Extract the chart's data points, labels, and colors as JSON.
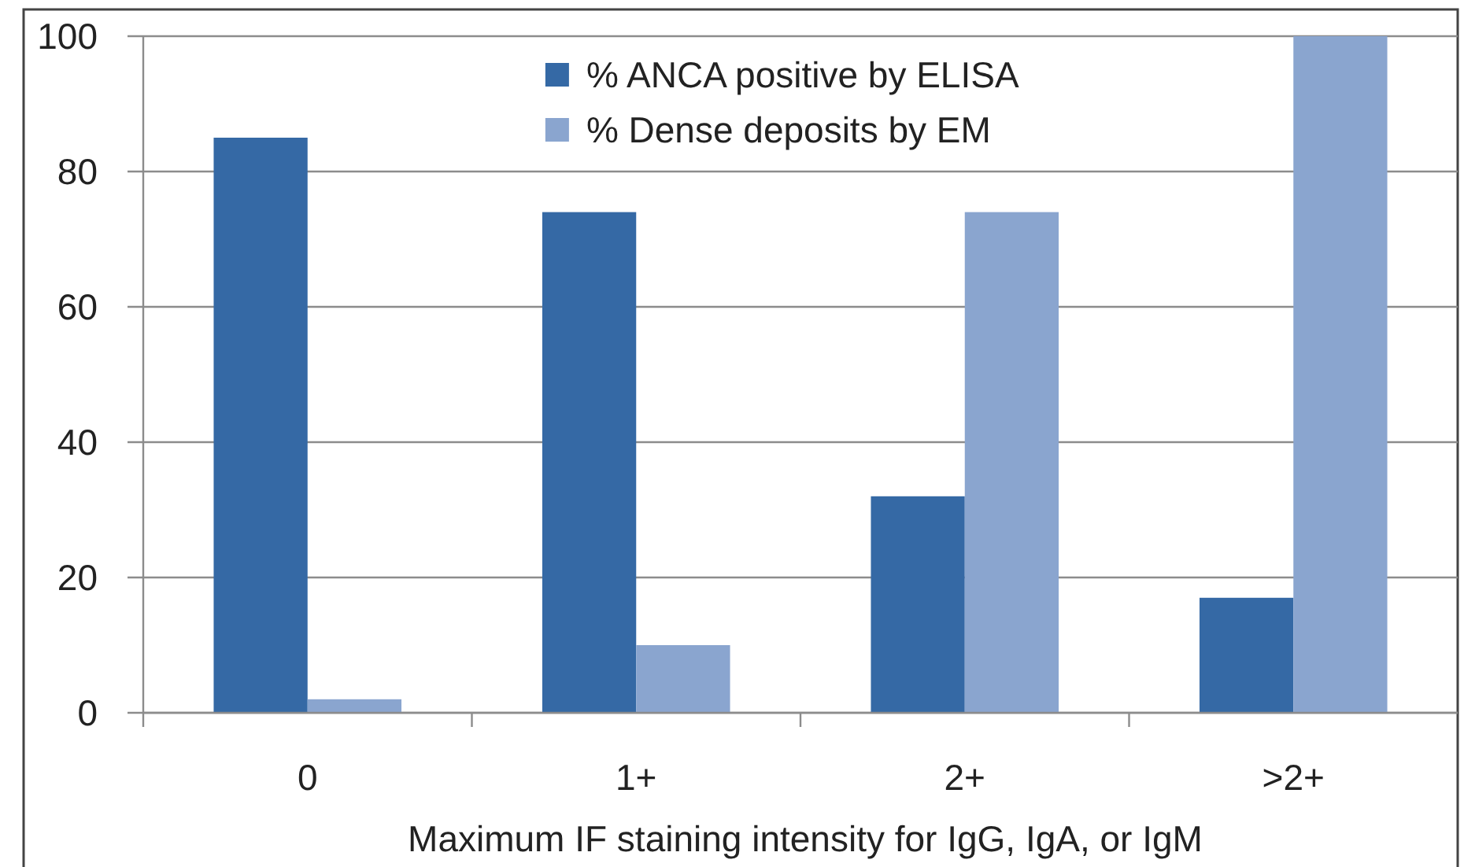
{
  "chart_data": {
    "type": "bar",
    "xlabel": "Maximum IF staining intensity for IgG, IgA, or IgM",
    "categories": [
      "0",
      "1+",
      "2+",
      ">2+"
    ],
    "series": [
      {
        "name": "% ANCA positive by ELISA",
        "color": "#3569a5",
        "values": [
          85,
          74,
          32,
          17
        ]
      },
      {
        "name": "% Dense deposits by EM",
        "color": "#8aa5cf",
        "values": [
          2,
          10,
          74,
          100
        ]
      }
    ],
    "ylim": [
      0,
      100
    ],
    "yticks": [
      0,
      20,
      40,
      60,
      80,
      100
    ],
    "grid": "y",
    "legend": "top"
  }
}
